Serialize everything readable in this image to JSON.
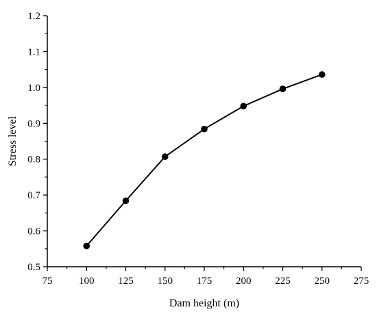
{
  "chart_data": {
    "type": "line",
    "title": "",
    "xlabel": "Dam height (m)",
    "ylabel": "Stress level",
    "xlim": [
      75,
      275
    ],
    "ylim": [
      0.5,
      1.2
    ],
    "x_ticks": [
      "75",
      "100",
      "125",
      "150",
      "175",
      "200",
      "225",
      "250",
      "275"
    ],
    "y_ticks": [
      "0.5",
      "0.6",
      "0.7",
      "0.8",
      "0.9",
      "1.0",
      "1.1",
      "1.2"
    ],
    "x_tick_values": [
      75,
      100,
      125,
      150,
      175,
      200,
      225,
      250,
      275
    ],
    "y_tick_values": [
      0.5,
      0.6,
      0.7,
      0.8,
      0.9,
      1.0,
      1.1,
      1.2
    ],
    "grid": false,
    "legend": "none",
    "series": [
      {
        "x": [
          100,
          125,
          150,
          175,
          200,
          225,
          250
        ],
        "values": [
          0.558,
          0.684,
          0.807,
          0.884,
          0.948,
          0.996,
          1.036
        ],
        "color": "#000000",
        "marker": "circle"
      }
    ]
  }
}
